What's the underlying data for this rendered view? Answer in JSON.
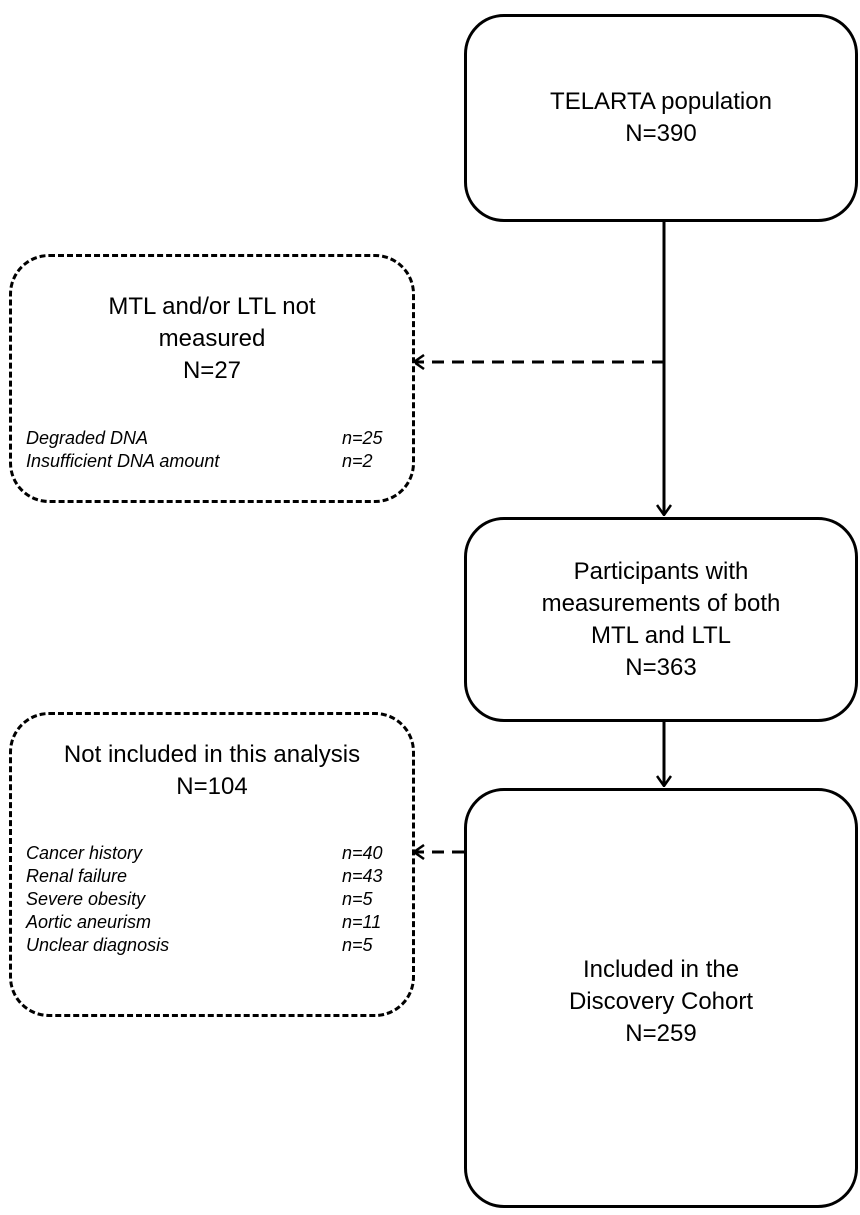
{
  "flow": {
    "box1": {
      "lines": [
        "TELARTA population",
        "N=390"
      ]
    },
    "box2": {
      "lines": [
        "Participants with",
        "measurements of both",
        "MTL and LTL",
        "N=363"
      ]
    },
    "box3": {
      "lines": [
        "Included in the",
        "Discovery Cohort",
        "N=259"
      ]
    }
  },
  "exclusions": {
    "ex1": {
      "title_lines": [
        "MTL and/or LTL not",
        "measured",
        "N=27"
      ],
      "reasons": [
        {
          "label": "Degraded DNA",
          "count": "n=25"
        },
        {
          "label": "Insufficient DNA amount",
          "count": "n=2"
        }
      ]
    },
    "ex2": {
      "title_lines": [
        "Not included in this analysis",
        "N=104"
      ],
      "reasons": [
        {
          "label": "Cancer history",
          "count": "n=40"
        },
        {
          "label": "Renal failure",
          "count": "n=43"
        },
        {
          "label": "Severe obesity",
          "count": "n=5"
        },
        {
          "label": "Aortic aneurism",
          "count": "n=11"
        },
        {
          "label": "Unclear diagnosis",
          "count": "n=5"
        }
      ]
    }
  }
}
